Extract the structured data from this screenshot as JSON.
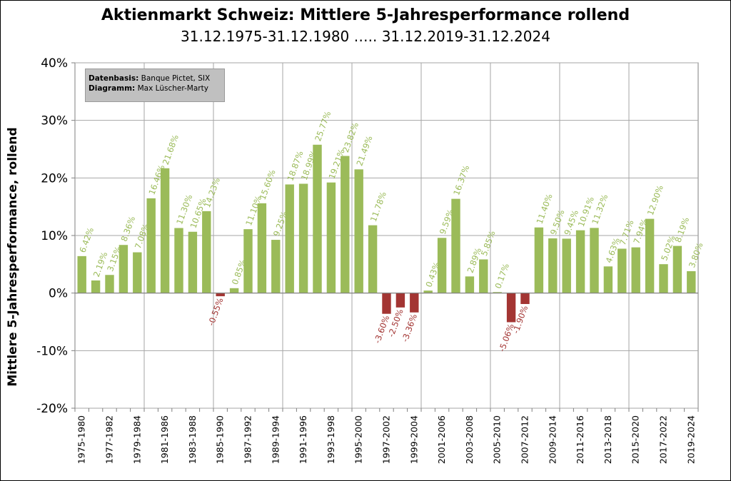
{
  "chart_data": {
    "type": "bar",
    "title": "Aktienmarkt Schweiz: Mittlere 5-Jahresperformance  rollend",
    "subtitle": "31.12.1975-31.12.1980 ….. 31.12.2019-31.12.2024",
    "ylabel": "Mittlere 5-Jahresperformance, rollend",
    "xlabel": "",
    "ylim": [
      -20,
      40
    ],
    "yticks": [
      -20,
      -10,
      0,
      10,
      20,
      30,
      40
    ],
    "ytick_labels": [
      "-20%",
      "-10%",
      "0%",
      "10%",
      "20%",
      "30%",
      "40%"
    ],
    "grid": "vertical lines every 5 categories, horizontal lines at each tick",
    "colors": {
      "positive": "#9bbb59",
      "negative": "#a33533",
      "positive_label": "#9bbb59",
      "negative_label": "#a33533"
    },
    "categories": [
      "1975-1980",
      "1976-1981",
      "1977-1982",
      "1978-1983",
      "1979-1984",
      "1980-1985",
      "1981-1986",
      "1982-1987",
      "1983-1988",
      "1984-1989",
      "1985-1990",
      "1986-1991",
      "1987-1992",
      "1988-1993",
      "1989-1994",
      "1990-1995",
      "1991-1996",
      "1992-1997",
      "1993-1998",
      "1994-1999",
      "1995-2000",
      "1996-2001",
      "1997-2002",
      "1998-2003",
      "1999-2004",
      "2000-2005",
      "2001-2006",
      "2002-2007",
      "2003-2008",
      "2004-2009",
      "2005-2010",
      "2006-2011",
      "2007-2012",
      "2008-2013",
      "2009-2014",
      "2010-2015",
      "2011-2016",
      "2012-2017",
      "2013-2018",
      "2014-2019",
      "2015-2020",
      "2016-2021",
      "2017-2022",
      "2018-2023",
      "2019-2024"
    ],
    "shown_category_labels": [
      "1975-1980",
      "1977-1982",
      "1979-1984",
      "1981-1986",
      "1983-1988",
      "1985-1990",
      "1987-1992",
      "1989-1994",
      "1991-1996",
      "1993-1998",
      "1995-2000",
      "1997-2002",
      "1999-2004",
      "2001-2006",
      "2003-2008",
      "2005-2010",
      "2007-2012",
      "2009-2014",
      "2011-2016",
      "2013-2018",
      "2015-2020",
      "2017-2022",
      "2019-2024"
    ],
    "values": [
      6.42,
      2.19,
      3.15,
      8.36,
      7.08,
      16.46,
      21.68,
      11.3,
      10.65,
      14.23,
      -0.55,
      0.85,
      11.1,
      15.6,
      9.25,
      18.87,
      18.99,
      25.77,
      19.21,
      23.82,
      21.49,
      11.78,
      -3.6,
      -2.5,
      -3.36,
      0.43,
      9.59,
      16.37,
      2.89,
      5.85,
      0.17,
      -5.06,
      -1.9,
      11.4,
      9.5,
      9.45,
      10.91,
      11.32,
      4.63,
      7.71,
      7.94,
      12.9,
      5.02,
      8.19,
      3.8
    ],
    "data_labels": [
      "6.42%",
      "2.19%",
      "3.15%",
      "8.36%",
      "7.08%",
      "16.46%",
      "21.68%",
      "11.30%",
      "10.65%",
      "14.23%",
      "-0.55%",
      "0.85%",
      "11.10%",
      "15.60%",
      "9.25%",
      "18.87%",
      "18.99%",
      "25.77%",
      "19.21%",
      "23.82%",
      "21.49%",
      "11.78%",
      "-3.60%",
      "-2.50%",
      "-3.36%",
      "0.43%",
      "9.59%",
      "16.37%",
      "2.89%",
      "5.85%",
      "0.17%",
      "-5.06%",
      "-1.90%",
      "11.40%",
      "9.50%",
      "9.45%",
      "10.91%",
      "11.32%",
      "4.63%",
      "7.71%",
      "7.94%",
      "12.90%",
      "5.02%",
      "8.19%",
      "3.80%"
    ],
    "source_box": {
      "line1_label": "Datenbasis:",
      "line1_value": " Banque Pictet, SIX",
      "line2_label": "Diagramm:",
      "line2_value": " Max Lüscher-Marty"
    }
  }
}
